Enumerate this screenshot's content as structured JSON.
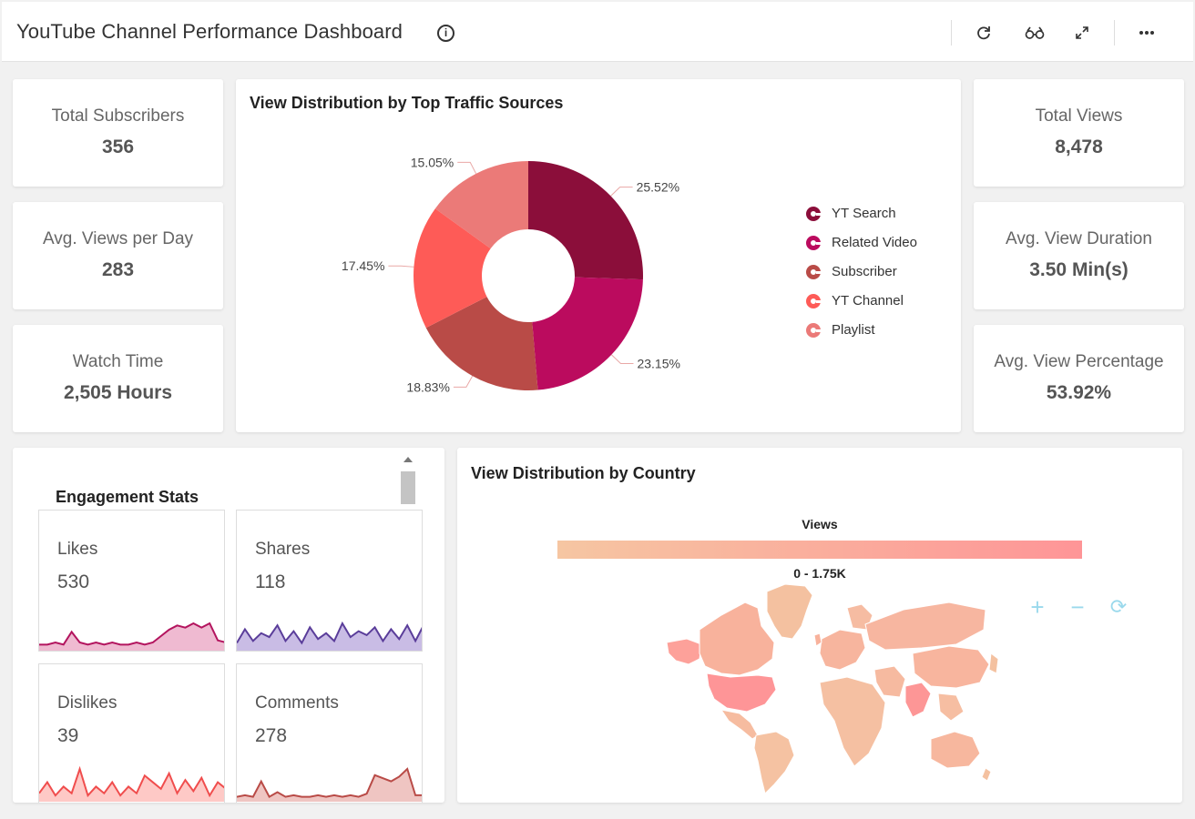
{
  "header": {
    "title": "YouTube Channel Performance Dashboard"
  },
  "icons": {
    "info": "info-icon",
    "refresh": "refresh-icon",
    "view": "glasses-icon",
    "expand": "expand-icon",
    "more": "more-icon"
  },
  "kpis": {
    "total_subscribers": {
      "label": "Total Subscribers",
      "value": "356"
    },
    "avg_views_per_day": {
      "label": "Avg. Views per Day",
      "value": "283"
    },
    "watch_time": {
      "label": "Watch Time",
      "value": "2,505 Hours"
    },
    "total_views": {
      "label": "Total Views",
      "value": "8,478"
    },
    "avg_view_duration": {
      "label": "Avg. View Duration",
      "value": "3.50 Min(s)"
    },
    "avg_view_percentage": {
      "label": "Avg. View Percentage",
      "value": "53.92%"
    }
  },
  "traffic": {
    "title": "View Distribution by Top Traffic Sources",
    "legend": [
      {
        "label": "YT Search",
        "color": "#8b0e3a"
      },
      {
        "label": "Related Video",
        "color": "#bb0b5e"
      },
      {
        "label": "Subscriber",
        "color": "#b94b47"
      },
      {
        "label": "YT Channel",
        "color": "#fe5b57"
      },
      {
        "label": "Playlist",
        "color": "#eb7a78"
      }
    ]
  },
  "chart_data": {
    "type": "pie",
    "donut": true,
    "categories": [
      "YT Search",
      "Related Video",
      "Subscriber",
      "YT Channel",
      "Playlist"
    ],
    "values": [
      25.52,
      23.15,
      18.83,
      17.45,
      15.05
    ],
    "labels": [
      "25.52%",
      "23.15%",
      "18.83%",
      "17.45%",
      "15.05%"
    ],
    "colors": [
      "#8b0e3a",
      "#bb0b5e",
      "#b94b47",
      "#fe5b57",
      "#eb7a78"
    ],
    "legend": "right"
  },
  "engagement": {
    "title": "Engagement Stats",
    "cards": [
      {
        "key": "likes",
        "label": "Likes",
        "value": "530",
        "color": "#b3145e",
        "fill": "#e9a3c2",
        "series": [
          2,
          2,
          3,
          2,
          8,
          3,
          2,
          3,
          2,
          3,
          2,
          2,
          3,
          2,
          3,
          6,
          9,
          11,
          10,
          12,
          10,
          12,
          4,
          3
        ]
      },
      {
        "key": "shares",
        "label": "Shares",
        "value": "118",
        "color": "#5a3d9a",
        "fill": "#b7a6dc",
        "series": [
          3,
          10,
          4,
          8,
          6,
          12,
          4,
          9,
          3,
          11,
          5,
          8,
          4,
          13,
          6,
          9,
          7,
          11,
          4,
          10,
          5,
          12,
          4,
          12
        ]
      },
      {
        "key": "dislikes",
        "label": "Dislikes",
        "value": "39",
        "color": "#f04d4d",
        "fill": "#fdb7b3",
        "series": [
          3,
          8,
          2,
          6,
          3,
          14,
          2,
          6,
          3,
          8,
          2,
          6,
          3,
          11,
          8,
          5,
          12,
          3,
          9,
          4,
          10,
          2,
          8,
          5
        ]
      },
      {
        "key": "comments",
        "label": "Comments",
        "value": "278",
        "color": "#b94b47",
        "fill": "#e9b1ad",
        "series": [
          2,
          3,
          2,
          12,
          2,
          5,
          2,
          3,
          2,
          2,
          3,
          2,
          3,
          2,
          3,
          2,
          4,
          16,
          14,
          12,
          15,
          20,
          3,
          3
        ]
      }
    ]
  },
  "country": {
    "title": "View Distribution by Country",
    "legend_title": "Views",
    "range": "0 - 1.75K",
    "scale_colors": [
      "#f6c6a2",
      "#fe9597"
    ],
    "zoom_in": "+",
    "zoom_out": "−",
    "reset": "⟳"
  }
}
